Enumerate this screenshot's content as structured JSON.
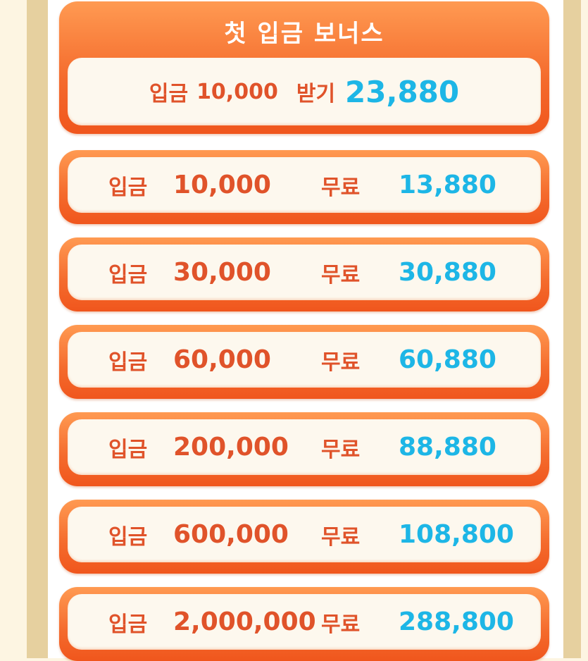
{
  "header": {
    "title": "첫 입금 보너스",
    "deposit_label": "입금",
    "deposit_amount": "10,000",
    "receive_label": "받기",
    "receive_amount": "23,880"
  },
  "rows": [
    {
      "deposit_label": "입금",
      "amount": "10,000",
      "free_label": "무료",
      "bonus": "13,880"
    },
    {
      "deposit_label": "입금",
      "amount": "30,000",
      "free_label": "무료",
      "bonus": "30,880"
    },
    {
      "deposit_label": "입금",
      "amount": "60,000",
      "free_label": "무료",
      "bonus": "60,880"
    },
    {
      "deposit_label": "입금",
      "amount": "200,000",
      "free_label": "무료",
      "bonus": "88,880"
    },
    {
      "deposit_label": "입금",
      "amount": "600,000",
      "free_label": "무료",
      "bonus": "108,800"
    },
    {
      "deposit_label": "입금",
      "amount": "2,000,000",
      "free_label": "무료",
      "bonus": "288,800"
    }
  ],
  "colors": {
    "accent": "#f46a2c",
    "label": "#e0532a",
    "bonus": "#1db6e6",
    "frame": "#e6d09f",
    "background": "#fdf5e2"
  }
}
